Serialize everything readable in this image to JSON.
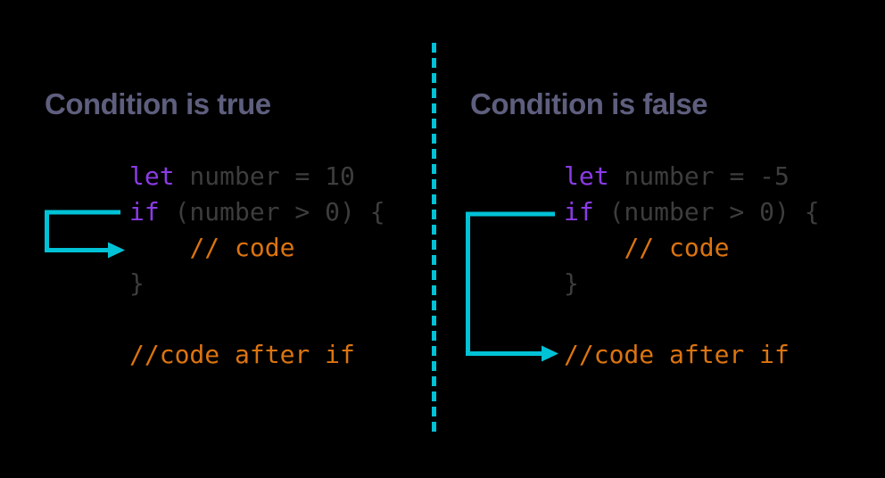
{
  "colors": {
    "background": "#000000",
    "heading": "#5e5e7e",
    "keyword": "#8b3be6",
    "code_plain": "#3d3d3d",
    "comment": "#dc740f",
    "accent_cyan": "#00c2d6"
  },
  "divider": {
    "style": "dashed",
    "color": "#00c2d6"
  },
  "panels": [
    {
      "title": "Condition is true",
      "code_lines": [
        [
          {
            "text": "let",
            "type": "keyword"
          },
          {
            "text": " number = 10",
            "type": "plain"
          }
        ],
        [
          {
            "text": "if",
            "type": "keyword"
          },
          {
            "text": " (number > 0) {",
            "type": "plain"
          }
        ],
        [
          {
            "text": "    ",
            "type": "plain"
          },
          {
            "text": "// code",
            "type": "comment"
          }
        ],
        [
          {
            "text": "}",
            "type": "plain"
          }
        ],
        [],
        [
          {
            "text": "//code after if",
            "type": "comment"
          }
        ]
      ]
    },
    {
      "title": "Condition is false",
      "code_lines": [
        [
          {
            "text": "let",
            "type": "keyword"
          },
          {
            "text": " number = -5",
            "type": "plain"
          }
        ],
        [
          {
            "text": "if",
            "type": "keyword"
          },
          {
            "text": " (number > 0) {",
            "type": "plain"
          }
        ],
        [
          {
            "text": "    ",
            "type": "plain"
          },
          {
            "text": "// code",
            "type": "comment"
          }
        ],
        [
          {
            "text": "}",
            "type": "plain"
          }
        ],
        [],
        [
          {
            "text": "//code after if",
            "type": "comment"
          }
        ]
      ]
    }
  ]
}
